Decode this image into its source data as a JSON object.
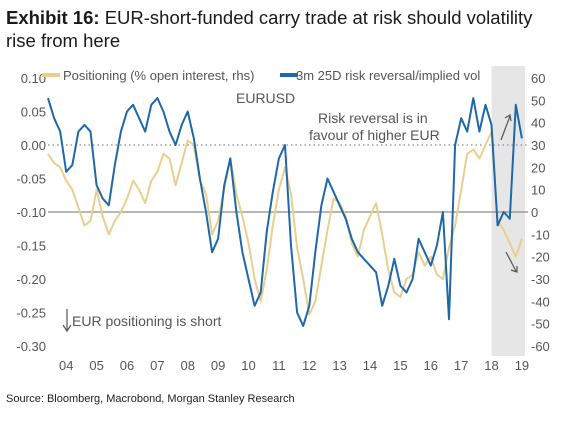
{
  "header": {
    "exhibit": "Exhibit 16:",
    "title": "EUR-short-funded carry trade at risk should volatility rise from here"
  },
  "source": "Source: Bloomberg, Macrobond, Morgan Stanley Research",
  "colors": {
    "positioning": "#E8CF8F",
    "risk_reversal": "#1F68A8",
    "shade": "#E6E6E6",
    "zero_line": "#8C8C8C",
    "dotted_line": "#8C8C8C"
  },
  "chart_data": {
    "type": "line",
    "xlabel": "",
    "x_ticks": [
      "04",
      "05",
      "06",
      "07",
      "08",
      "09",
      "10",
      "11",
      "12",
      "13",
      "14",
      "15",
      "16",
      "17",
      "18",
      "19"
    ],
    "y_left": {
      "ylim": [
        -0.3,
        0.1
      ],
      "ticks": [
        "0.10",
        "0.05",
        "0.00",
        "-0.05",
        "-0.10",
        "-0.15",
        "-0.20",
        "-0.25",
        "-0.30"
      ],
      "values": [
        0.1,
        0.05,
        0.0,
        -0.05,
        -0.1,
        -0.15,
        -0.2,
        -0.25,
        -0.3
      ]
    },
    "y_right": {
      "ylim": [
        -60,
        60
      ],
      "ticks": [
        "60",
        "50",
        "40",
        "30",
        "20",
        "10",
        "0",
        "-10",
        "-20",
        "-30",
        "-40",
        "-50",
        "-60"
      ],
      "values": [
        60,
        50,
        40,
        30,
        20,
        10,
        0,
        -10,
        -20,
        -30,
        -40,
        -50,
        -60
      ]
    },
    "shaded_region": {
      "x_start": 2018.2,
      "x_end": 2019.3
    },
    "dotted_reference_left": 0.0,
    "zero_reference_right": 0,
    "series": [
      {
        "name": "Positioning (% open interest, rhs)",
        "axis": "right",
        "x": [
          2003.6,
          2003.8,
          2004.0,
          2004.2,
          2004.4,
          2004.6,
          2004.8,
          2005.0,
          2005.2,
          2005.4,
          2005.6,
          2005.8,
          2006.0,
          2006.2,
          2006.4,
          2006.6,
          2006.8,
          2007.0,
          2007.2,
          2007.4,
          2007.6,
          2007.8,
          2008.0,
          2008.2,
          2008.4,
          2008.6,
          2008.8,
          2009.0,
          2009.2,
          2009.4,
          2009.6,
          2009.8,
          2010.0,
          2010.2,
          2010.4,
          2010.6,
          2010.8,
          2011.0,
          2011.2,
          2011.4,
          2011.6,
          2011.8,
          2012.0,
          2012.2,
          2012.4,
          2012.6,
          2012.8,
          2013.0,
          2013.2,
          2013.4,
          2013.6,
          2013.8,
          2014.0,
          2014.2,
          2014.4,
          2014.6,
          2014.8,
          2015.0,
          2015.2,
          2015.4,
          2015.6,
          2015.8,
          2016.0,
          2016.2,
          2016.4,
          2016.6,
          2016.8,
          2017.0,
          2017.2,
          2017.4,
          2017.6,
          2017.8,
          2018.0,
          2018.2,
          2018.4,
          2018.6,
          2018.8,
          2019.0,
          2019.2
        ],
        "values": [
          26,
          22,
          20,
          14,
          10,
          2,
          -6,
          -4,
          10,
          -2,
          -10,
          -4,
          0,
          6,
          14,
          10,
          4,
          14,
          18,
          26,
          24,
          12,
          22,
          32,
          30,
          14,
          8,
          -10,
          -4,
          10,
          24,
          8,
          -2,
          -14,
          -30,
          -40,
          -26,
          -6,
          10,
          20,
          8,
          -16,
          -30,
          -46,
          -40,
          -24,
          -8,
          6,
          4,
          -2,
          -14,
          -20,
          -8,
          -2,
          4,
          -10,
          -26,
          -36,
          -38,
          -30,
          -28,
          -18,
          -24,
          -20,
          -28,
          -30,
          -16,
          -6,
          10,
          26,
          28,
          24,
          30,
          36,
          -4,
          -8,
          -14,
          -20,
          -12
        ]
      },
      {
        "name": "3m 25D risk reversal/implied vol",
        "axis": "left",
        "x": [
          2003.6,
          2003.8,
          2004.0,
          2004.2,
          2004.4,
          2004.6,
          2004.8,
          2005.0,
          2005.2,
          2005.4,
          2005.6,
          2005.8,
          2006.0,
          2006.2,
          2006.4,
          2006.6,
          2006.8,
          2007.0,
          2007.2,
          2007.4,
          2007.6,
          2007.8,
          2008.0,
          2008.2,
          2008.4,
          2008.6,
          2008.8,
          2009.0,
          2009.2,
          2009.4,
          2009.6,
          2009.8,
          2010.0,
          2010.2,
          2010.4,
          2010.6,
          2010.8,
          2011.0,
          2011.2,
          2011.4,
          2011.6,
          2011.8,
          2012.0,
          2012.2,
          2012.4,
          2012.6,
          2012.8,
          2013.0,
          2013.2,
          2013.4,
          2013.6,
          2013.8,
          2014.0,
          2014.2,
          2014.4,
          2014.6,
          2014.8,
          2015.0,
          2015.2,
          2015.4,
          2015.6,
          2015.8,
          2016.0,
          2016.2,
          2016.4,
          2016.6,
          2016.8,
          2017.0,
          2017.2,
          2017.4,
          2017.6,
          2017.8,
          2018.0,
          2018.2,
          2018.4,
          2018.6,
          2018.8,
          2019.0,
          2019.2
        ],
        "values": [
          0.07,
          0.04,
          0.02,
          -0.04,
          -0.03,
          0.02,
          0.03,
          0.02,
          -0.06,
          -0.08,
          -0.09,
          -0.03,
          0.02,
          0.05,
          0.06,
          0.04,
          0.02,
          0.06,
          0.07,
          0.05,
          0.02,
          0.0,
          0.03,
          0.05,
          0.01,
          -0.05,
          -0.1,
          -0.16,
          -0.14,
          -0.06,
          -0.02,
          -0.1,
          -0.16,
          -0.2,
          -0.24,
          -0.22,
          -0.13,
          -0.07,
          -0.02,
          0.0,
          -0.15,
          -0.25,
          -0.27,
          -0.24,
          -0.16,
          -0.09,
          -0.05,
          -0.07,
          -0.09,
          -0.11,
          -0.14,
          -0.16,
          -0.17,
          -0.18,
          -0.19,
          -0.24,
          -0.21,
          -0.17,
          -0.21,
          -0.22,
          -0.2,
          -0.14,
          -0.16,
          -0.18,
          -0.15,
          -0.1,
          -0.26,
          0.0,
          0.04,
          0.02,
          0.07,
          0.02,
          0.06,
          0.03,
          -0.12,
          -0.1,
          -0.11,
          0.06,
          0.01
        ]
      }
    ],
    "annotations": [
      {
        "text": "EURUSD"
      },
      {
        "text": "Risk reversal is in"
      },
      {
        "text": "favour of higher EUR"
      },
      {
        "text": "EUR positioning is short"
      }
    ]
  }
}
